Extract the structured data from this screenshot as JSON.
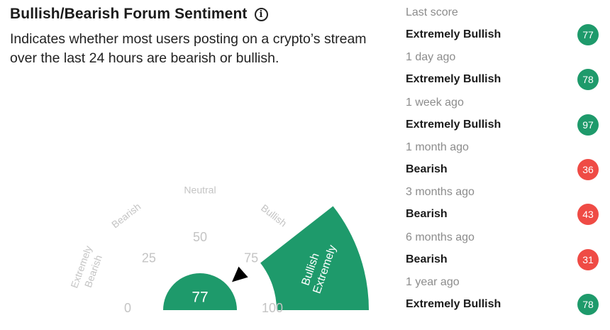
{
  "header": {
    "title": "Bullish/Bearish Forum Sentiment",
    "info_icon": "info-icon",
    "description": "Indicates whether most users posting on a crypto’s stream over the last 24 hours are bearish or bullish."
  },
  "gauge": {
    "value": 77,
    "value_text": "77",
    "active_zone": "Extremely Bullish",
    "active_zone_lines": [
      "Extremely",
      "Bullish"
    ],
    "zones": [
      {
        "name": "extremely-bearish",
        "lines": [
          "Extremely",
          "Bearish"
        ]
      },
      {
        "name": "bearish",
        "lines": [
          "Bearish"
        ]
      },
      {
        "name": "neutral",
        "lines": [
          "Neutral"
        ]
      },
      {
        "name": "bullish",
        "lines": [
          "Bullish"
        ]
      }
    ],
    "ticks": [
      "0",
      "25",
      "50",
      "75",
      "100"
    ],
    "colors": {
      "active": "#1e9a6b",
      "muted": "#c4c4c4",
      "pointer": "#000000"
    }
  },
  "history": {
    "entries": [
      {
        "period": "Last score",
        "label": "Extremely Bullish",
        "score": "77",
        "color": "#1e9a6b"
      },
      {
        "period": "1 day ago",
        "label": "Extremely Bullish",
        "score": "78",
        "color": "#1e9a6b"
      },
      {
        "period": "1 week ago",
        "label": "Extremely Bullish",
        "score": "97",
        "color": "#1e9a6b"
      },
      {
        "period": "1 month ago",
        "label": "Bearish",
        "score": "36",
        "color": "#ef4b45"
      },
      {
        "period": "3 months ago",
        "label": "Bearish",
        "score": "43",
        "color": "#ef4b45"
      },
      {
        "period": "6 months ago",
        "label": "Bearish",
        "score": "31",
        "color": "#ef4b45"
      },
      {
        "period": "1 year ago",
        "label": "Extremely Bullish",
        "score": "78",
        "color": "#1e9a6b"
      }
    ]
  }
}
